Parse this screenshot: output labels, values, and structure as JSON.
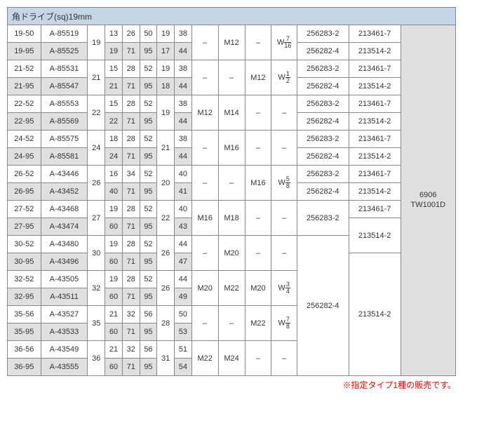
{
  "header": "角ドライブ(sq)19mm",
  "note": "※指定タイプ1種の販売です。",
  "tool": {
    "a": "6906",
    "b": "TW1001D"
  },
  "rows": [
    {
      "m": "19-50",
      "p": "A-85519",
      "sq": "19",
      "a": "13",
      "b": "26",
      "c": "50",
      "d": "19",
      "e": "38"
    },
    {
      "m": "19-95",
      "p": "A-85525",
      "a": "19",
      "b": "71",
      "c": "95",
      "d": "17",
      "e": "44"
    },
    {
      "m": "21-52",
      "p": "A-85531",
      "sq": "21",
      "a": "15",
      "b": "28",
      "c": "52",
      "d": "19",
      "e": "38"
    },
    {
      "m": "21-95",
      "p": "A-85547",
      "a": "21",
      "b": "71",
      "c": "95",
      "d": "18",
      "e": "44"
    },
    {
      "m": "22-52",
      "p": "A-85553",
      "sq": "22",
      "a": "15",
      "b": "28",
      "c": "52",
      "d": "19",
      "e": "38"
    },
    {
      "m": "22-95",
      "p": "A-85569",
      "a": "22",
      "b": "71",
      "c": "95",
      "e": "44"
    },
    {
      "m": "24-52",
      "p": "A-85575",
      "sq": "24",
      "a": "18",
      "b": "28",
      "c": "52",
      "d": "21",
      "e": "38"
    },
    {
      "m": "24-95",
      "p": "A-85581",
      "a": "24",
      "b": "71",
      "c": "95",
      "e": "44"
    },
    {
      "m": "26-52",
      "p": "A-43446",
      "sq": "26",
      "a": "16",
      "b": "34",
      "c": "52",
      "d": "20",
      "e": "40"
    },
    {
      "m": "26-95",
      "p": "A-43452",
      "a": "40",
      "b": "71",
      "c": "95",
      "e": "41"
    },
    {
      "m": "27-52",
      "p": "A-43468",
      "sq": "27",
      "a": "19",
      "b": "28",
      "c": "52",
      "d": "22",
      "e": "40"
    },
    {
      "m": "27-95",
      "p": "A-43474",
      "a": "60",
      "b": "71",
      "c": "95",
      "e": "43"
    },
    {
      "m": "30-52",
      "p": "A-43480",
      "sq": "30",
      "a": "19",
      "b": "28",
      "c": "52",
      "d": "26",
      "e": "44"
    },
    {
      "m": "30-95",
      "p": "A-43496",
      "a": "60",
      "b": "71",
      "c": "95",
      "e": "47"
    },
    {
      "m": "32-52",
      "p": "A-43505",
      "sq": "32",
      "a": "19",
      "b": "28",
      "c": "52",
      "d": "26",
      "e": "44"
    },
    {
      "m": "32-95",
      "p": "A-43511",
      "a": "60",
      "b": "71",
      "c": "95",
      "e": "49"
    },
    {
      "m": "35-56",
      "p": "A-43527",
      "sq": "35",
      "a": "21",
      "b": "32",
      "c": "56",
      "d": "28",
      "e": "50"
    },
    {
      "m": "35-95",
      "p": "A-43533",
      "a": "60",
      "b": "71",
      "c": "95",
      "e": "53"
    },
    {
      "m": "36-56",
      "p": "A-43549",
      "sq": "36",
      "a": "21",
      "b": "32",
      "c": "56",
      "d": "31",
      "e": "51"
    },
    {
      "m": "36-95",
      "p": "A-43555",
      "a": "60",
      "b": "71",
      "c": "95",
      "e": "54"
    }
  ],
  "g": {
    "r0": {
      "f": "–",
      "g": "M12",
      "h": "–",
      "wn": "7",
      "wd": "16",
      "x1": "256283-2",
      "x2": "256282-4",
      "y1": "213461-7",
      "y2": "213514-2"
    },
    "r1": {
      "f": "–",
      "g": "–",
      "h": "M12",
      "wn": "1",
      "wd": "2",
      "x1": "256283-2",
      "x2": "256282-4",
      "y1": "213461-7",
      "y2": "213514-2"
    },
    "r2": {
      "f": "M12",
      "g": "M14",
      "h": "–",
      "i": "–",
      "x1": "256283-2",
      "x2": "256282-4",
      "y1": "213461-7",
      "y2": "213514-2"
    },
    "r3": {
      "f": "–",
      "g": "M16",
      "h": "–",
      "i": "–",
      "x1": "256283-2",
      "x2": "256282-4",
      "y1": "213461-7",
      "y2": "213514-2"
    },
    "r4": {
      "f": "–",
      "g": "–",
      "h": "M16",
      "wn": "5",
      "wd": "8",
      "x1": "256283-2",
      "x2": "256282-4",
      "y1": "213461-7",
      "y2": "213514-2"
    },
    "r5": {
      "f": "M16",
      "g": "M18",
      "h": "–",
      "i": "–",
      "x": "256283-2",
      "y1": "213461-7",
      "y2": "213514-2"
    },
    "r6": {
      "f": "–",
      "g": "M20",
      "h": "–",
      "i": "–",
      "x": "256282-4",
      "y": "213514-2"
    },
    "r7": {
      "f": "M20",
      "g": "M22",
      "h": "M20",
      "wn": "3",
      "wd": "4"
    },
    "r8": {
      "f": "–",
      "g": "–",
      "h": "M22",
      "wn": "7",
      "wd": "8"
    },
    "r9": {
      "f": "M22",
      "g": "M24",
      "h": "–",
      "i": "–"
    }
  }
}
